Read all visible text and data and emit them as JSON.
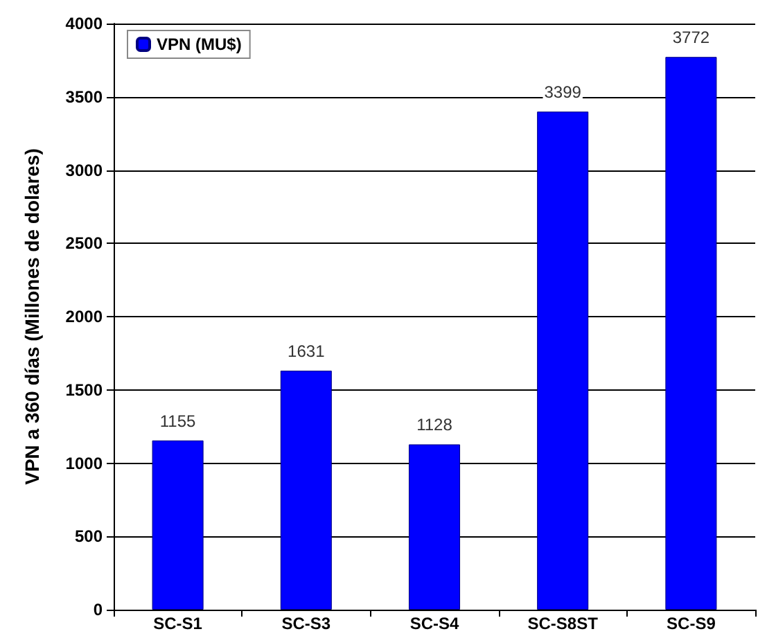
{
  "chart_data": {
    "type": "bar",
    "ylabel": "VPN a 360 días (Millones de dolares)",
    "categories": [
      "SC-S1",
      "SC-S3",
      "SC-S4",
      "SC-S8ST",
      "SC-S9"
    ],
    "series": [
      {
        "name": "VPN (MU$)",
        "color": "#0000ff",
        "values": [
          1155,
          1631,
          1128,
          3399,
          3772
        ]
      }
    ],
    "ylim": [
      0,
      4000
    ],
    "yticks": [
      0,
      500,
      1000,
      1500,
      2000,
      2500,
      3000,
      3500,
      4000
    ],
    "grid": "y",
    "legend": "top left",
    "data_labels": true
  }
}
